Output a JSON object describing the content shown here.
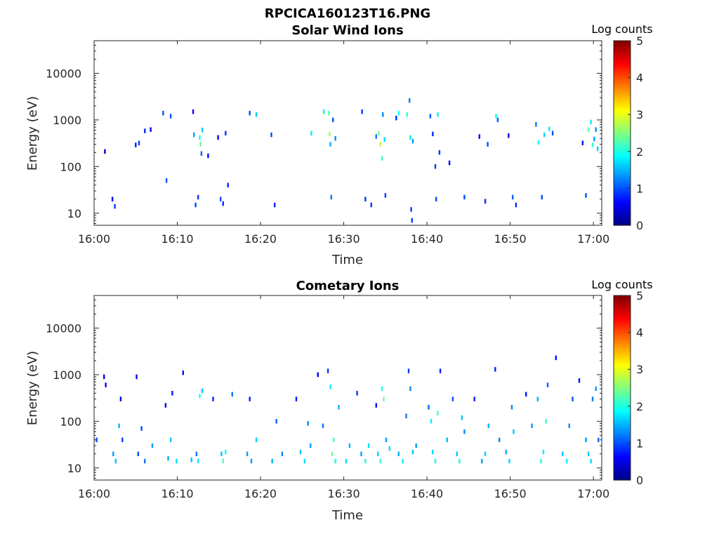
{
  "figure_title": "RPCICA160123T16.PNG",
  "colorbar_title": "Log counts",
  "colormap": "jet",
  "colors": {
    "jet_stops": [
      "#000080",
      "#0000ff",
      "#0080ff",
      "#00ffff",
      "#80ff80",
      "#ffff00",
      "#ff8000",
      "#ff0000",
      "#800000"
    ],
    "axis": "#262626",
    "background": "#ffffff"
  },
  "chart_data": [
    {
      "type": "heatmap",
      "title": "Solar Wind Ions",
      "xlabel": "Time",
      "ylabel": "Energy (eV)",
      "x_ticks": [
        "16:00",
        "16:10",
        "16:20",
        "16:30",
        "16:40",
        "16:50",
        "17:00"
      ],
      "xlim_minutes": [
        0,
        61
      ],
      "y_scale": "log",
      "ylim": [
        5.5,
        50000
      ],
      "y_ticks": [
        10,
        100,
        1000,
        10000
      ],
      "y_tick_labels": [
        "10",
        "100",
        "1000",
        "10000"
      ],
      "colorbar": {
        "label": "Log counts",
        "ticks": [
          0,
          1,
          2,
          3,
          4,
          5
        ],
        "range": [
          0,
          5
        ]
      },
      "cells": [
        [
          1.2,
          210,
          0.4
        ],
        [
          2.1,
          20,
          0.6
        ],
        [
          2.4,
          14,
          0.9
        ],
        [
          4.9,
          290,
          0.7
        ],
        [
          5.3,
          320,
          0.9
        ],
        [
          6.0,
          580,
          0.8
        ],
        [
          6.7,
          620,
          0.6
        ],
        [
          8.2,
          1400,
          1.0
        ],
        [
          8.6,
          50,
          1.0
        ],
        [
          9.1,
          1200,
          1.0
        ],
        [
          11.8,
          1500,
          0.6
        ],
        [
          11.9,
          480,
          1.4
        ],
        [
          12.1,
          15,
          1.0
        ],
        [
          12.4,
          22,
          0.9
        ],
        [
          12.6,
          420,
          2.0
        ],
        [
          12.7,
          300,
          2.4
        ],
        [
          12.8,
          190,
          1.1
        ],
        [
          12.9,
          610,
          1.6
        ],
        [
          13.6,
          170,
          0.6
        ],
        [
          14.8,
          420,
          0.6
        ],
        [
          15.1,
          20,
          1.0
        ],
        [
          15.4,
          16,
          0.8
        ],
        [
          15.7,
          520,
          0.9
        ],
        [
          16.0,
          40,
          0.8
        ],
        [
          18.6,
          1400,
          1.0
        ],
        [
          19.4,
          1300,
          1.6
        ],
        [
          21.2,
          480,
          1.0
        ],
        [
          21.6,
          15,
          0.8
        ],
        [
          26.0,
          520,
          1.8
        ],
        [
          27.5,
          1500,
          1.8
        ],
        [
          28.1,
          1400,
          2.3
        ],
        [
          28.2,
          500,
          2.6
        ],
        [
          28.3,
          300,
          1.5
        ],
        [
          28.4,
          22,
          1.2
        ],
        [
          28.6,
          1000,
          1.0
        ],
        [
          28.9,
          400,
          1.3
        ],
        [
          32.1,
          1500,
          0.9
        ],
        [
          32.5,
          20,
          0.9
        ],
        [
          33.2,
          15,
          0.9
        ],
        [
          33.8,
          440,
          1.2
        ],
        [
          34.1,
          520,
          2.4
        ],
        [
          34.3,
          300,
          2.8
        ],
        [
          34.5,
          150,
          2.1
        ],
        [
          34.6,
          1300,
          1.3
        ],
        [
          34.8,
          380,
          1.7
        ],
        [
          34.9,
          24,
          0.9
        ],
        [
          36.2,
          1100,
          0.8
        ],
        [
          36.5,
          1400,
          1.9
        ],
        [
          37.5,
          1300,
          2.1
        ],
        [
          37.8,
          2600,
          1.2
        ],
        [
          37.9,
          420,
          1.8
        ],
        [
          38.0,
          12,
          0.9
        ],
        [
          38.1,
          7,
          0.9
        ],
        [
          38.2,
          350,
          1.4
        ],
        [
          40.3,
          1200,
          1.1
        ],
        [
          40.6,
          500,
          0.8
        ],
        [
          40.9,
          100,
          0.9
        ],
        [
          41.0,
          20,
          1.0
        ],
        [
          41.2,
          1300,
          1.8
        ],
        [
          41.4,
          200,
          0.9
        ],
        [
          42.6,
          120,
          0.6
        ],
        [
          44.4,
          22,
          1.0
        ],
        [
          46.2,
          440,
          0.6
        ],
        [
          46.9,
          18,
          0.8
        ],
        [
          47.2,
          300,
          1.0
        ],
        [
          48.2,
          1200,
          2.0
        ],
        [
          48.4,
          1000,
          1.1
        ],
        [
          49.7,
          460,
          0.6
        ],
        [
          50.2,
          22,
          1.1
        ],
        [
          50.6,
          15,
          0.8
        ],
        [
          53.0,
          800,
          1.2
        ],
        [
          53.3,
          330,
          1.9
        ],
        [
          53.7,
          22,
          1.0
        ],
        [
          54.0,
          480,
          1.7
        ],
        [
          54.6,
          640,
          1.8
        ],
        [
          55.0,
          520,
          1.0
        ],
        [
          58.6,
          320,
          0.7
        ],
        [
          59.0,
          24,
          1.0
        ],
        [
          59.3,
          620,
          2.3
        ],
        [
          59.6,
          900,
          1.8
        ],
        [
          59.8,
          290,
          2.1
        ],
        [
          60.0,
          390,
          1.4
        ],
        [
          60.2,
          620,
          1.3
        ],
        [
          60.4,
          240,
          1.6
        ]
      ]
    },
    {
      "type": "heatmap",
      "title": "Cometary Ions",
      "xlabel": "Time",
      "ylabel": "Energy (eV)",
      "x_ticks": [
        "16:00",
        "16:10",
        "16:20",
        "16:30",
        "16:40",
        "16:50",
        "17:00"
      ],
      "xlim_minutes": [
        0,
        61
      ],
      "y_scale": "log",
      "ylim": [
        5.5,
        50000
      ],
      "y_ticks": [
        10,
        100,
        1000,
        10000
      ],
      "y_tick_labels": [
        "10",
        "100",
        "1000",
        "10000"
      ],
      "colorbar": {
        "label": "Log counts",
        "ticks": [
          0,
          1,
          2,
          3,
          4,
          5
        ],
        "range": [
          0,
          5
        ]
      },
      "cells": [
        [
          0.2,
          40,
          1.0
        ],
        [
          1.1,
          900,
          0.6
        ],
        [
          1.3,
          600,
          0.6
        ],
        [
          2.2,
          20,
          1.4
        ],
        [
          2.5,
          14,
          1.6
        ],
        [
          2.9,
          80,
          1.5
        ],
        [
          3.1,
          300,
          0.6
        ],
        [
          3.3,
          40,
          0.9
        ],
        [
          5.0,
          900,
          0.6
        ],
        [
          5.2,
          20,
          1.0
        ],
        [
          5.6,
          70,
          1.0
        ],
        [
          6.0,
          14,
          1.2
        ],
        [
          6.9,
          30,
          1.4
        ],
        [
          8.5,
          220,
          0.6
        ],
        [
          8.8,
          16,
          1.5
        ],
        [
          9.1,
          40,
          1.6
        ],
        [
          9.3,
          400,
          0.7
        ],
        [
          9.8,
          14,
          1.7
        ],
        [
          10.6,
          1100,
          0.7
        ],
        [
          11.6,
          15,
          1.6
        ],
        [
          12.2,
          20,
          1.2
        ],
        [
          12.4,
          14,
          1.8
        ],
        [
          12.6,
          350,
          2.1
        ],
        [
          12.9,
          450,
          1.6
        ],
        [
          14.2,
          300,
          0.8
        ],
        [
          15.2,
          20,
          1.6
        ],
        [
          15.4,
          14,
          2.3
        ],
        [
          15.7,
          22,
          1.9
        ],
        [
          16.5,
          380,
          1.2
        ],
        [
          18.3,
          20,
          1.4
        ],
        [
          18.6,
          300,
          0.8
        ],
        [
          18.8,
          14,
          1.4
        ],
        [
          19.4,
          40,
          1.6
        ],
        [
          21.3,
          14,
          1.5
        ],
        [
          21.8,
          100,
          1.1
        ],
        [
          22.5,
          20,
          1.3
        ],
        [
          24.2,
          300,
          0.7
        ],
        [
          24.7,
          22,
          1.6
        ],
        [
          25.2,
          14,
          1.7
        ],
        [
          25.6,
          90,
          1.3
        ],
        [
          25.9,
          30,
          1.4
        ],
        [
          26.8,
          1000,
          0.6
        ],
        [
          27.4,
          80,
          1.2
        ],
        [
          28.0,
          1200,
          0.9
        ],
        [
          28.3,
          550,
          1.8
        ],
        [
          28.5,
          20,
          2.4
        ],
        [
          28.7,
          40,
          2.2
        ],
        [
          28.9,
          14,
          2.0
        ],
        [
          29.3,
          200,
          1.5
        ],
        [
          30.2,
          14,
          1.7
        ],
        [
          30.6,
          30,
          1.5
        ],
        [
          31.5,
          400,
          0.9
        ],
        [
          32.0,
          20,
          1.4
        ],
        [
          32.5,
          14,
          2.0
        ],
        [
          32.9,
          30,
          1.7
        ],
        [
          33.8,
          220,
          0.7
        ],
        [
          34.0,
          20,
          1.7
        ],
        [
          34.3,
          14,
          2.1
        ],
        [
          34.5,
          500,
          2.0
        ],
        [
          34.7,
          300,
          2.4
        ],
        [
          35.0,
          40,
          1.4
        ],
        [
          35.4,
          26,
          1.7
        ],
        [
          36.5,
          20,
          1.5
        ],
        [
          37.0,
          14,
          1.8
        ],
        [
          37.4,
          130,
          1.2
        ],
        [
          37.7,
          1200,
          0.9
        ],
        [
          37.9,
          500,
          1.3
        ],
        [
          38.2,
          22,
          1.6
        ],
        [
          38.6,
          30,
          1.4
        ],
        [
          40.1,
          200,
          1.1
        ],
        [
          40.4,
          100,
          1.8
        ],
        [
          40.6,
          22,
          1.7
        ],
        [
          40.9,
          14,
          1.9
        ],
        [
          41.2,
          150,
          2.2
        ],
        [
          41.5,
          1200,
          0.8
        ],
        [
          42.3,
          40,
          1.5
        ],
        [
          43.0,
          300,
          1.0
        ],
        [
          43.5,
          20,
          1.6
        ],
        [
          43.8,
          14,
          1.9
        ],
        [
          44.1,
          120,
          1.6
        ],
        [
          44.4,
          60,
          1.3
        ],
        [
          45.6,
          300,
          0.8
        ],
        [
          46.5,
          14,
          1.4
        ],
        [
          46.9,
          20,
          1.7
        ],
        [
          47.3,
          80,
          1.5
        ],
        [
          48.1,
          1300,
          0.8
        ],
        [
          48.6,
          40,
          1.3
        ],
        [
          49.4,
          22,
          1.5
        ],
        [
          49.8,
          14,
          1.7
        ],
        [
          50.1,
          200,
          1.3
        ],
        [
          50.3,
          60,
          1.6
        ],
        [
          51.8,
          380,
          0.7
        ],
        [
          52.5,
          80,
          1.4
        ],
        [
          53.2,
          300,
          1.5
        ],
        [
          53.6,
          14,
          2.0
        ],
        [
          53.9,
          22,
          1.8
        ],
        [
          54.2,
          100,
          2.1
        ],
        [
          54.4,
          600,
          1.1
        ],
        [
          55.4,
          2300,
          0.7
        ],
        [
          56.2,
          20,
          1.6
        ],
        [
          56.7,
          14,
          1.8
        ],
        [
          57.0,
          80,
          1.3
        ],
        [
          57.4,
          300,
          1.0
        ],
        [
          58.2,
          750,
          0.7
        ],
        [
          59.0,
          40,
          1.4
        ],
        [
          59.3,
          20,
          1.6
        ],
        [
          59.6,
          14,
          1.7
        ],
        [
          59.8,
          300,
          1.2
        ],
        [
          60.2,
          500,
          1.4
        ],
        [
          60.5,
          40,
          1.2
        ]
      ]
    }
  ]
}
